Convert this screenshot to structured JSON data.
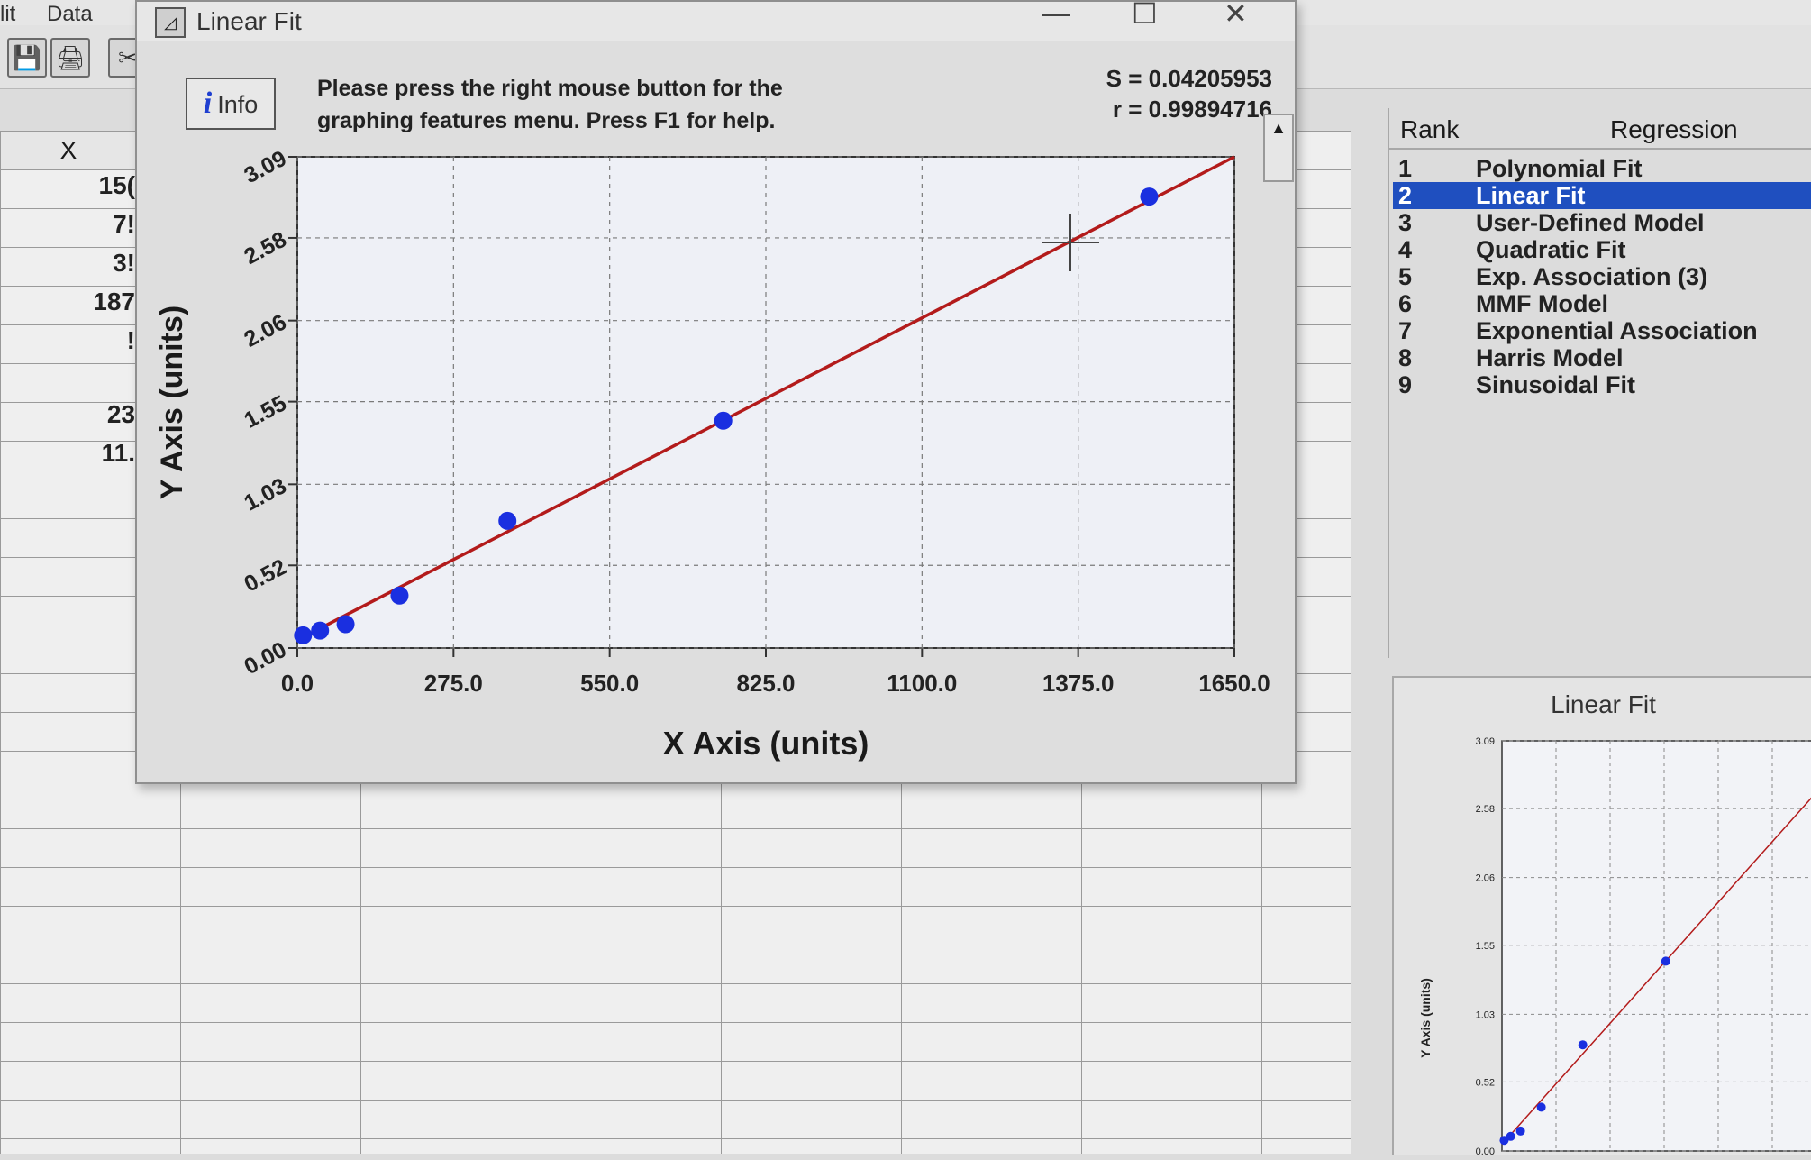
{
  "menu": {
    "items": [
      "lit",
      "Data"
    ]
  },
  "sheet": {
    "column_header": "X",
    "cells": [
      "15(",
      "7!",
      "3!",
      "187",
      "!",
      "23",
      "11."
    ]
  },
  "dialog": {
    "title": "Linear Fit",
    "info_label": "Info",
    "message_line1": "Please press the right mouse button for the",
    "message_line2": "graphing features menu.  Press F1 for help.",
    "s_stat": "S = 0.04205953",
    "r_stat": "r = 0.99894716"
  },
  "rank_panel": {
    "col_rank": "Rank",
    "col_regression": "Regression",
    "items": [
      {
        "rank": "1",
        "name": "Polynomial Fit"
      },
      {
        "rank": "2",
        "name": "Linear Fit"
      },
      {
        "rank": "3",
        "name": "User-Defined Model"
      },
      {
        "rank": "4",
        "name": "Quadratic Fit"
      },
      {
        "rank": "5",
        "name": "Exp. Association (3)"
      },
      {
        "rank": "6",
        "name": "MMF Model"
      },
      {
        "rank": "7",
        "name": "Exponential Association"
      },
      {
        "rank": "8",
        "name": "Harris Model"
      },
      {
        "rank": "9",
        "name": "Sinusoidal Fit"
      }
    ],
    "selected_index": 1,
    "selection_color": "#1f4fbf"
  },
  "mini_chart": {
    "title": "Linear Fit",
    "ylabel": "Y Axis (units)"
  },
  "chart_data": {
    "type": "scatter",
    "xlabel": "X Axis (units)",
    "ylabel": "Y Axis (units)",
    "xlim": [
      0,
      1650
    ],
    "ylim": [
      0,
      3.09
    ],
    "x_ticks": [
      "0.0",
      "275.0",
      "550.0",
      "825.0",
      "1100.0",
      "1375.0",
      "1650.0"
    ],
    "y_ticks": [
      "0.00",
      "0.52",
      "1.03",
      "1.55",
      "2.06",
      "2.58",
      "3.09"
    ],
    "grid": true,
    "series": [
      {
        "points": [
          [
            10,
            0.08
          ],
          [
            40,
            0.11
          ],
          [
            85,
            0.15
          ],
          [
            180,
            0.33
          ],
          [
            370,
            0.8
          ],
          [
            750,
            1.43
          ],
          [
            1500,
            2.84
          ]
        ],
        "color": "#1a2fe0"
      }
    ],
    "fit_line": {
      "x": [
        0,
        1650
      ],
      "y": [
        0.05,
        3.09
      ],
      "color": "#b31b1b"
    }
  }
}
